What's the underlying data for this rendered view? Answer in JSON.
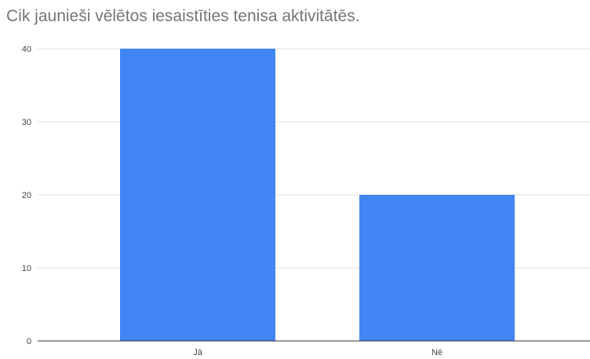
{
  "chart_data": {
    "type": "bar",
    "title": "Cik jaunieši vēlētos iesaistīties tenisa aktivitātēs.",
    "categories": [
      "Jā",
      "Nē"
    ],
    "values": [
      40,
      20
    ],
    "ylim": [
      0,
      40
    ],
    "yticks": [
      "0",
      "10",
      "20",
      "30",
      "40"
    ],
    "grid": true,
    "legend": "none",
    "bar_color": "#4285f4",
    "grid_color": "#e0e0e0",
    "axis_color": "#333333"
  }
}
